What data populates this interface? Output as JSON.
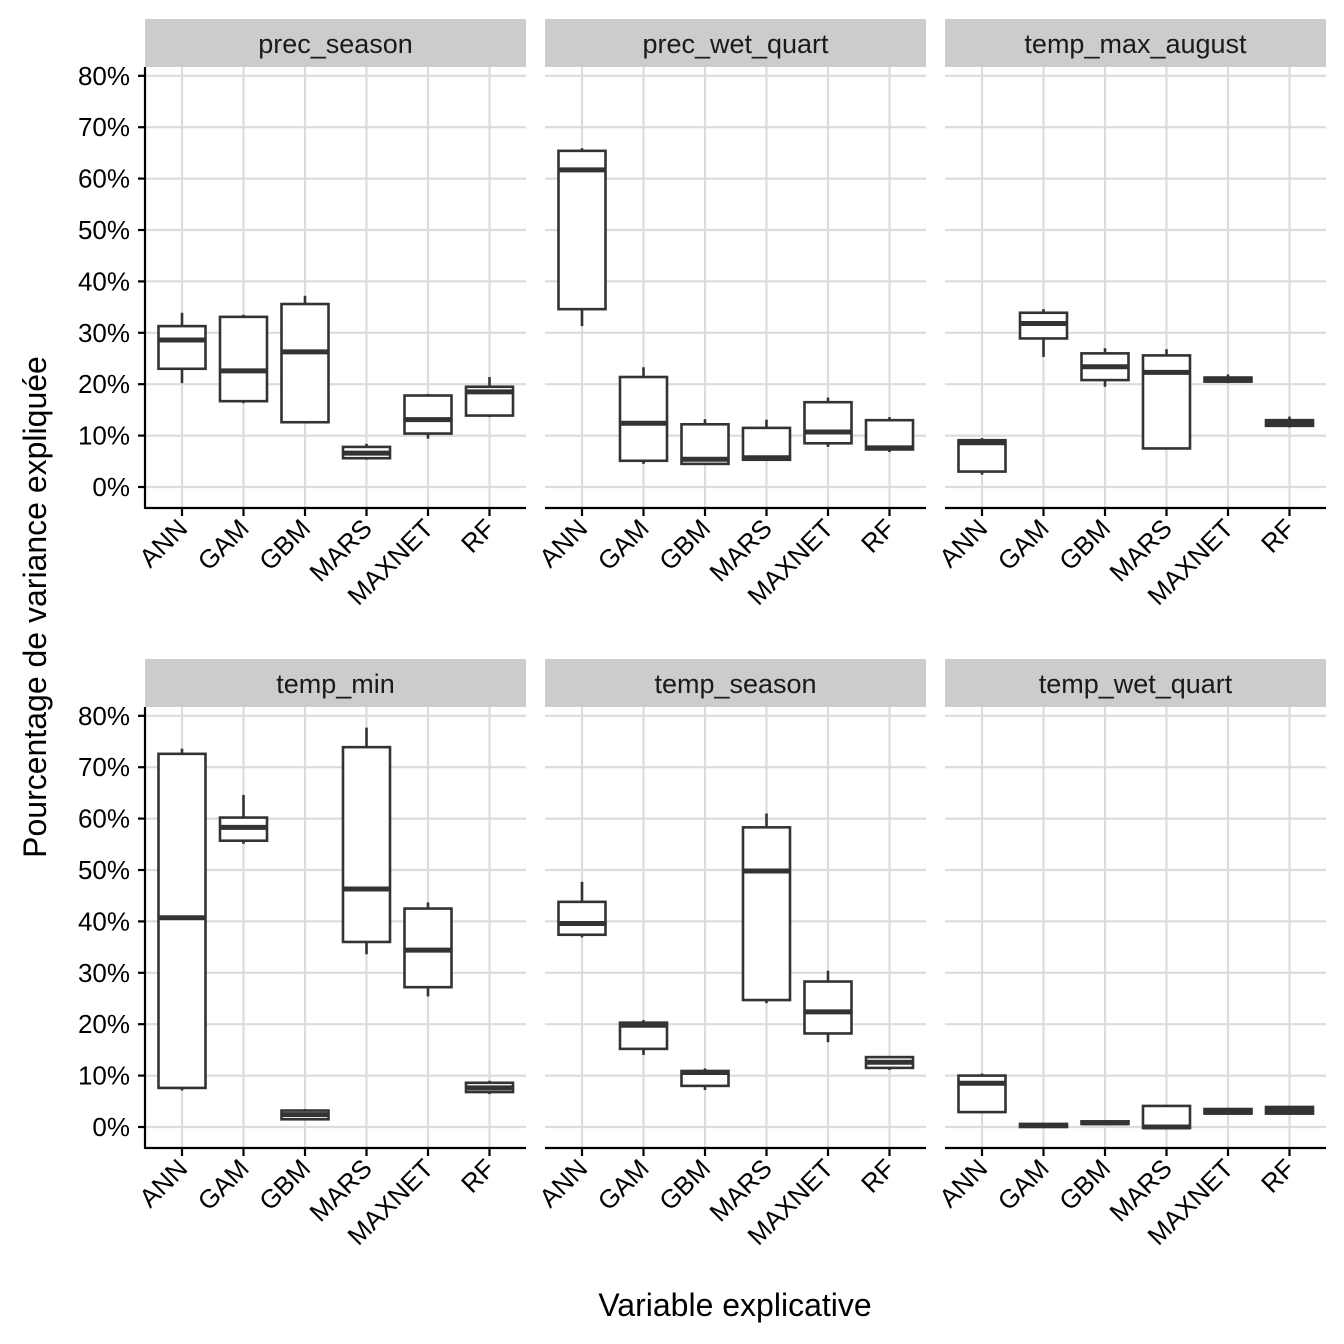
{
  "chart_data": {
    "type": "boxplot",
    "xlabel": "Variable explicative",
    "ylabel": "Pourcentage de variance expliquée",
    "ylim": [
      -3.5,
      82
    ],
    "yticks": [
      0,
      10,
      20,
      30,
      40,
      50,
      60,
      70,
      80
    ],
    "ytick_labels": [
      "0%",
      "10%",
      "20%",
      "30%",
      "40%",
      "50%",
      "60%",
      "70%",
      "80%"
    ],
    "grid": true,
    "layout": "facet 2 rows x 3 columns",
    "categories": [
      "ANN",
      "GAM",
      "GBM",
      "MARS",
      "MAXNET",
      "RF"
    ],
    "panels": [
      {
        "title": "prec_season",
        "boxes": [
          {
            "category": "ANN",
            "min": 20.2,
            "q1": 23.0,
            "median": 28.6,
            "q3": 31.3,
            "max": 33.9
          },
          {
            "category": "GAM",
            "min": 16.3,
            "q1": 16.7,
            "median": 22.6,
            "q3": 33.1,
            "max": 33.5
          },
          {
            "category": "GBM",
            "min": 12.5,
            "q1": 12.6,
            "median": 26.3,
            "q3": 35.6,
            "max": 37.2
          },
          {
            "category": "MARS",
            "min": 5.3,
            "q1": 5.6,
            "median": 6.6,
            "q3": 7.8,
            "max": 8.4
          },
          {
            "category": "MAXNET",
            "min": 9.4,
            "q1": 10.4,
            "median": 13.1,
            "q3": 17.8,
            "max": 18.1
          },
          {
            "category": "RF",
            "min": 13.6,
            "q1": 13.9,
            "median": 18.5,
            "q3": 19.5,
            "max": 21.4
          }
        ]
      },
      {
        "title": "prec_wet_quart",
        "boxes": [
          {
            "category": "ANN",
            "min": 31.3,
            "q1": 34.6,
            "median": 61.7,
            "q3": 65.4,
            "max": 65.9
          },
          {
            "category": "GAM",
            "min": 4.5,
            "q1": 5.1,
            "median": 12.4,
            "q3": 21.4,
            "max": 23.3
          },
          {
            "category": "GBM",
            "min": 4.4,
            "q1": 4.5,
            "median": 5.4,
            "q3": 12.2,
            "max": 13.2
          },
          {
            "category": "MARS",
            "min": 5.3,
            "q1": 5.3,
            "median": 5.7,
            "q3": 11.5,
            "max": 13.1
          },
          {
            "category": "MAXNET",
            "min": 7.8,
            "q1": 8.5,
            "median": 10.7,
            "q3": 16.5,
            "max": 17.4
          },
          {
            "category": "RF",
            "min": 6.8,
            "q1": 7.3,
            "median": 7.6,
            "q3": 13.0,
            "max": 13.6
          }
        ]
      },
      {
        "title": "temp_max_august",
        "boxes": [
          {
            "category": "ANN",
            "min": 2.4,
            "q1": 3.0,
            "median": 8.6,
            "q3": 9.1,
            "max": 9.5
          },
          {
            "category": "GAM",
            "min": 25.3,
            "q1": 28.9,
            "median": 31.8,
            "q3": 33.9,
            "max": 34.6
          },
          {
            "category": "GBM",
            "min": 19.5,
            "q1": 20.8,
            "median": 23.4,
            "q3": 26.0,
            "max": 27.0
          },
          {
            "category": "MARS",
            "min": 7.5,
            "q1": 7.5,
            "median": 22.3,
            "q3": 25.6,
            "max": 26.8
          },
          {
            "category": "MAXNET",
            "min": 20.2,
            "q1": 20.5,
            "median": 20.9,
            "q3": 21.3,
            "max": 21.9
          },
          {
            "category": "RF",
            "min": 11.6,
            "q1": 11.9,
            "median": 12.5,
            "q3": 13.0,
            "max": 13.7
          }
        ]
      },
      {
        "title": "temp_min",
        "boxes": [
          {
            "category": "ANN",
            "min": 7.1,
            "q1": 7.6,
            "median": 40.7,
            "q3": 72.6,
            "max": 73.6
          },
          {
            "category": "GAM",
            "min": 55.1,
            "q1": 55.7,
            "median": 58.3,
            "q3": 60.2,
            "max": 64.6
          },
          {
            "category": "GBM",
            "min": 1.5,
            "q1": 1.5,
            "median": 2.4,
            "q3": 3.2,
            "max": 3.5
          },
          {
            "category": "MARS",
            "min": 33.6,
            "q1": 36.0,
            "median": 46.3,
            "q3": 73.9,
            "max": 77.7
          },
          {
            "category": "MAXNET",
            "min": 25.4,
            "q1": 27.2,
            "median": 34.4,
            "q3": 42.5,
            "max": 43.7
          },
          {
            "category": "RF",
            "min": 6.4,
            "q1": 6.8,
            "median": 7.6,
            "q3": 8.6,
            "max": 9.0
          }
        ]
      },
      {
        "title": "temp_season",
        "boxes": [
          {
            "category": "ANN",
            "min": 36.9,
            "q1": 37.4,
            "median": 39.6,
            "q3": 43.8,
            "max": 47.7
          },
          {
            "category": "GAM",
            "min": 14.0,
            "q1": 15.2,
            "median": 19.8,
            "q3": 20.3,
            "max": 20.8
          },
          {
            "category": "GBM",
            "min": 7.2,
            "q1": 8.0,
            "median": 10.6,
            "q3": 10.9,
            "max": 11.4
          },
          {
            "category": "MARS",
            "min": 24.1,
            "q1": 24.7,
            "median": 49.8,
            "q3": 58.3,
            "max": 61.0
          },
          {
            "category": "MAXNET",
            "min": 16.5,
            "q1": 18.2,
            "median": 22.4,
            "q3": 28.3,
            "max": 30.4
          },
          {
            "category": "RF",
            "min": 11.1,
            "q1": 11.5,
            "median": 12.6,
            "q3": 13.6,
            "max": 13.8
          }
        ]
      },
      {
        "title": "temp_wet_quart",
        "boxes": [
          {
            "category": "ANN",
            "min": 2.8,
            "q1": 2.9,
            "median": 8.5,
            "q3": 10.0,
            "max": 10.4
          },
          {
            "category": "GAM",
            "min": 0.0,
            "q1": 0.0,
            "median": 0.3,
            "q3": 0.6,
            "max": 0.6
          },
          {
            "category": "GBM",
            "min": 0.6,
            "q1": 0.6,
            "median": 0.8,
            "q3": 1.1,
            "max": 1.1
          },
          {
            "category": "MARS",
            "min": -0.2,
            "q1": -0.2,
            "median": 0.0,
            "q3": 4.1,
            "max": 4.1
          },
          {
            "category": "MAXNET",
            "min": 2.6,
            "q1": 2.6,
            "median": 3.1,
            "q3": 3.5,
            "max": 3.5
          },
          {
            "category": "RF",
            "min": 2.6,
            "q1": 2.6,
            "median": 3.3,
            "q3": 3.9,
            "max": 3.9
          }
        ]
      }
    ]
  }
}
